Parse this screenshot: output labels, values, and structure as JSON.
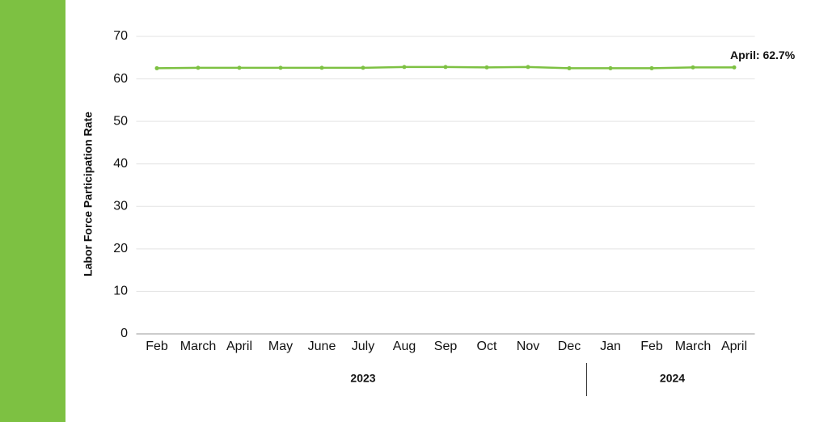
{
  "chart_data": {
    "type": "line",
    "y_label": "Labor Force Participation Rate",
    "annotation": "April: 62.7%",
    "categories": [
      "Feb",
      "March",
      "April",
      "May",
      "June",
      "July",
      "Aug",
      "Sep",
      "Oct",
      "Nov",
      "Dec",
      "Jan",
      "Feb",
      "March",
      "April"
    ],
    "x_groups": [
      {
        "label": "2023",
        "span": 11
      },
      {
        "label": "2024",
        "span": 4
      }
    ],
    "values": [
      62.5,
      62.6,
      62.6,
      62.6,
      62.6,
      62.6,
      62.8,
      62.8,
      62.7,
      62.8,
      62.5,
      62.5,
      62.5,
      62.7,
      62.7
    ],
    "color": "#7dc142",
    "ylim": [
      0,
      70
    ],
    "yticks": [
      0,
      10,
      20,
      30,
      40,
      50,
      60,
      70
    ],
    "grid": true
  }
}
